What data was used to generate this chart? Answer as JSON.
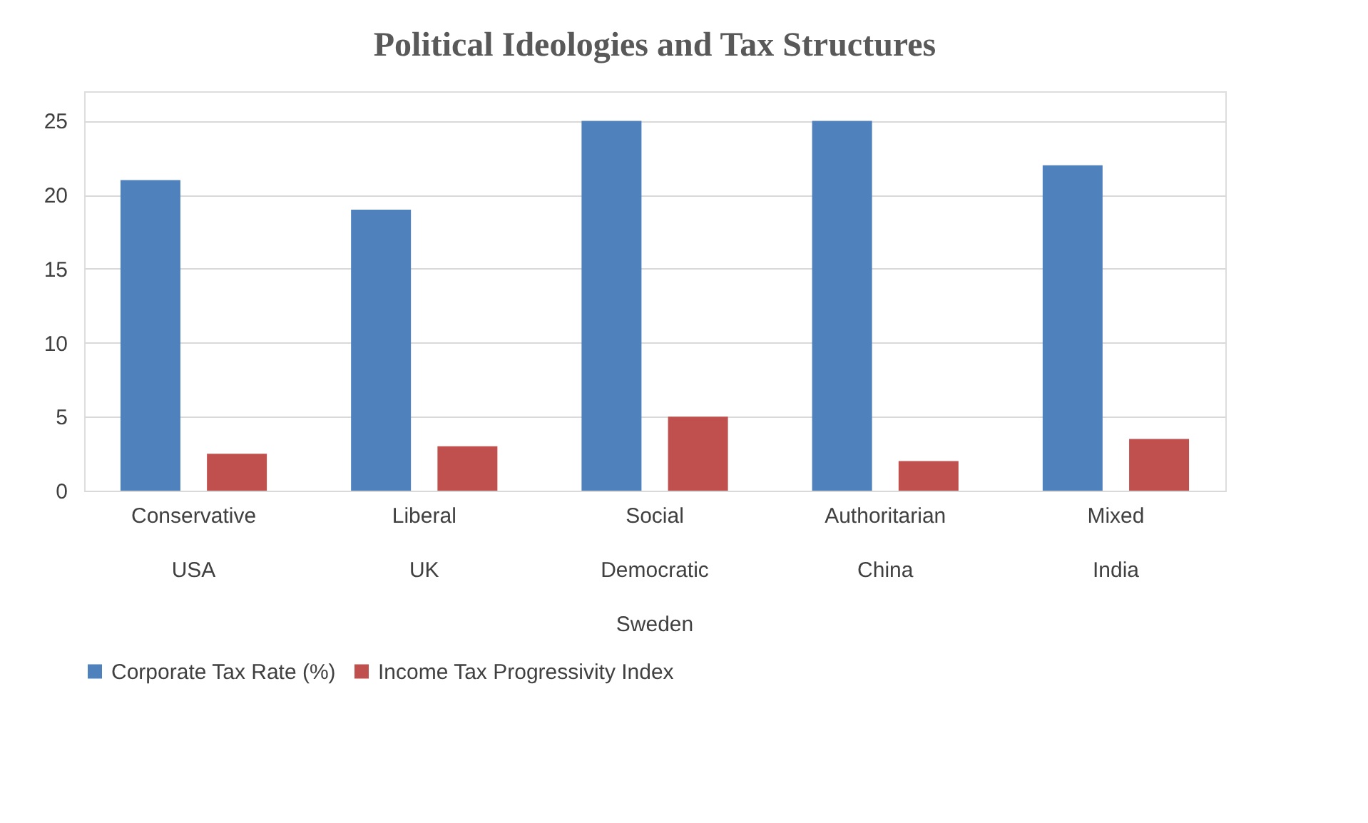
{
  "chart_data": {
    "type": "bar",
    "title": "Political Ideologies and Tax Structures",
    "categories": [
      "Conservative\n\nUSA",
      "Liberal\n\nUK",
      "Social\nDemocratic\nSweden",
      "Authoritarian\n\nChina",
      "Mixed\n\nIndia"
    ],
    "series": [
      {
        "name": "Corporate Tax Rate (%)",
        "color": "#4f81bd",
        "values": [
          21,
          19,
          25,
          25,
          22
        ]
      },
      {
        "name": "Income Tax Progressivity Index",
        "color": "#c0504d",
        "values": [
          2.5,
          3,
          5,
          2,
          3.5
        ]
      }
    ],
    "ylim": [
      0,
      27
    ],
    "yticks": [
      0,
      5,
      10,
      15,
      20,
      25
    ],
    "grid": "y",
    "legend": "bottom"
  }
}
